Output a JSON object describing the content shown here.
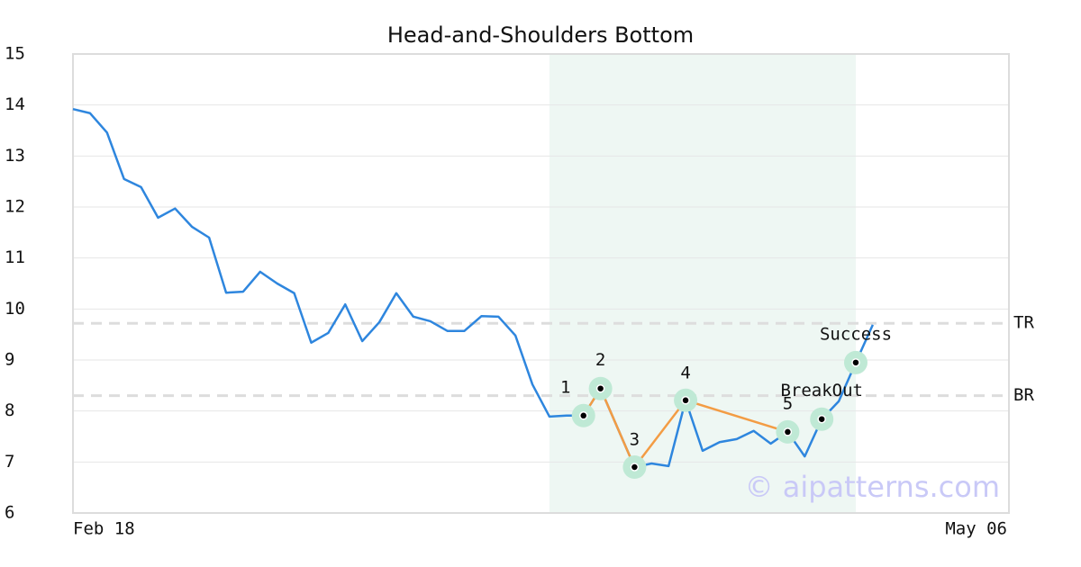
{
  "chart_data": {
    "type": "line",
    "title": "Head-and-Shoulders Bottom",
    "categories": [
      "Feb 18",
      null,
      null,
      null,
      null,
      null,
      null,
      null,
      null,
      null,
      null,
      null,
      null,
      null,
      null,
      null,
      null,
      null,
      null,
      null,
      null,
      null,
      null,
      null,
      null,
      null,
      null,
      null,
      null,
      null,
      null,
      null,
      null,
      null,
      null,
      null,
      null,
      null,
      null,
      null,
      null,
      null,
      null,
      null,
      null,
      null,
      null,
      null,
      null,
      null,
      null,
      null,
      null,
      null,
      null,
      "May 06"
    ],
    "series": [
      {
        "color": "#2e86de",
        "values": [
          13.92,
          13.84,
          13.46,
          12.55,
          12.39,
          11.79,
          11.97,
          11.61,
          11.4,
          10.32,
          10.34,
          10.73,
          10.5,
          10.31,
          9.34,
          9.53,
          10.09,
          9.37,
          9.74,
          10.31,
          9.85,
          9.76,
          9.57,
          9.57,
          9.86,
          9.85,
          9.48,
          8.52,
          7.89,
          7.91,
          7.91,
          8.44,
          7.67,
          6.9,
          6.97,
          6.92,
          8.21,
          7.22,
          7.39,
          7.45,
          7.61,
          7.36,
          7.59,
          7.11,
          7.84,
          8.19,
          8.95,
          9.69,
          null,
          null,
          null,
          null,
          null,
          null,
          null,
          null
        ]
      }
    ],
    "pattern_color": "#f39c44",
    "markers": [
      {
        "label": "1",
        "index": 30,
        "value": 7.91,
        "pattern": true
      },
      {
        "label": "2",
        "index": 31,
        "value": 8.44,
        "pattern": true
      },
      {
        "label": "3",
        "index": 33,
        "value": 6.9,
        "pattern": true
      },
      {
        "label": "4",
        "index": 36,
        "value": 8.21,
        "pattern": true
      },
      {
        "label": "5",
        "index": 42,
        "value": 7.59,
        "pattern": true
      },
      {
        "label": "BreakOut",
        "index": 44,
        "value": 7.84,
        "pattern": false
      },
      {
        "label": "Success",
        "index": 46,
        "value": 8.95,
        "pattern": false
      }
    ],
    "hlines": [
      {
        "label": "TR",
        "value": 9.72
      },
      {
        "label": "BR",
        "value": 8.3
      }
    ],
    "shade": [
      28,
      46
    ],
    "watermark": "© aipatterns.com",
    "ylim": [
      6,
      15
    ],
    "yticks": [
      6,
      7,
      8,
      9,
      10,
      11,
      12,
      13,
      14,
      15
    ],
    "grid": true
  }
}
